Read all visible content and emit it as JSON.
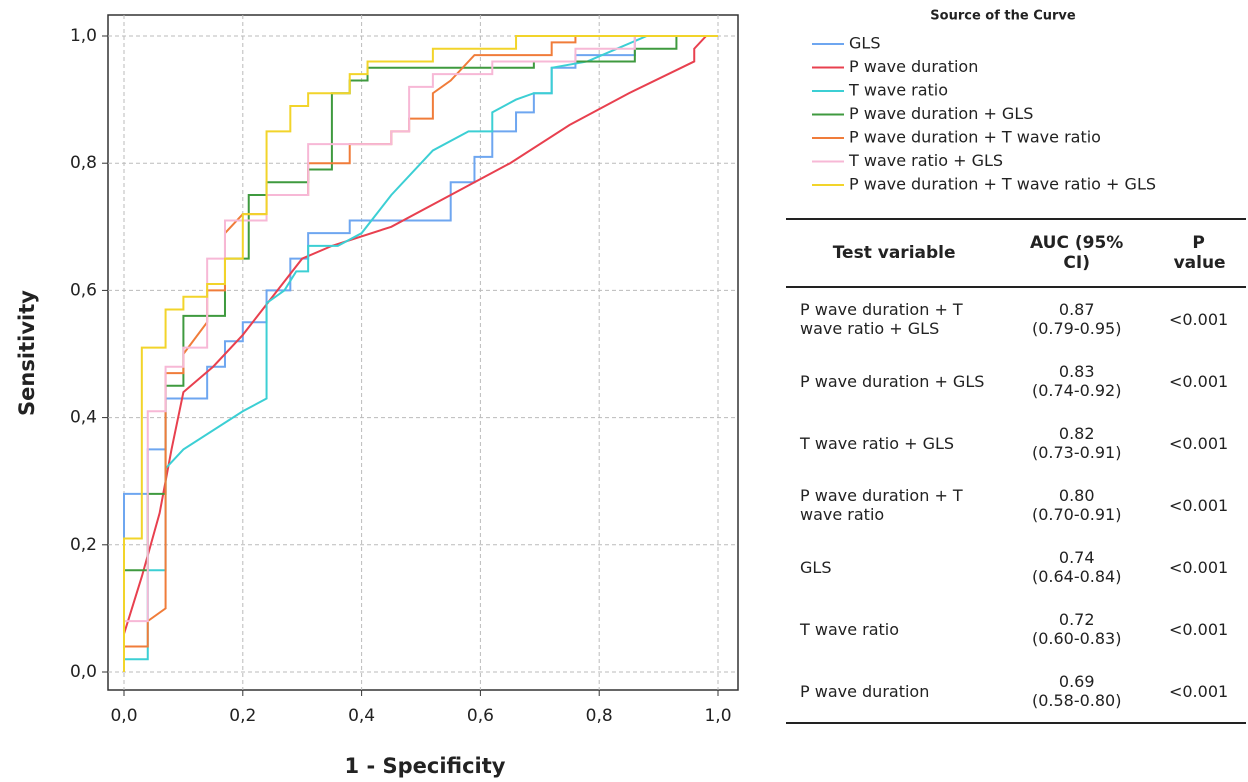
{
  "chart_data": {
    "type": "line",
    "xlabel": "1 - Specificity",
    "ylabel": "Sensitivity",
    "legend_title": "Source of the Curve",
    "legend": "right",
    "grid": true,
    "xlim": [
      0,
      1
    ],
    "ylim": [
      0,
      1
    ],
    "xticks": [
      {
        "value": 0,
        "label": "0,0"
      },
      {
        "value": 0.2,
        "label": "0,2"
      },
      {
        "value": 0.4,
        "label": "0,4"
      },
      {
        "value": 0.6,
        "label": "0,6"
      },
      {
        "value": 0.8,
        "label": "0,8"
      },
      {
        "value": 1,
        "label": "1,0"
      }
    ],
    "yticks": [
      {
        "value": 0,
        "label": "0,0"
      },
      {
        "value": 0.2,
        "label": "0,2"
      },
      {
        "value": 0.4,
        "label": "0,4"
      },
      {
        "value": 0.6,
        "label": "0,6"
      },
      {
        "value": 0.8,
        "label": "0,8"
      },
      {
        "value": 1,
        "label": "1,0"
      }
    ],
    "series": [
      {
        "name": "GLS",
        "color": "#6ea6f0",
        "x": [
          0,
          0,
          0.04,
          0.04,
          0.07,
          0.07,
          0.14,
          0.14,
          0.17,
          0.17,
          0.2,
          0.2,
          0.24,
          0.24,
          0.28,
          0.28,
          0.31,
          0.31,
          0.38,
          0.38,
          0.55,
          0.55,
          0.59,
          0.59,
          0.62,
          0.62,
          0.66,
          0.66,
          0.69,
          0.69,
          0.72,
          0.72,
          0.76,
          0.76,
          0.86,
          0.86,
          1
        ],
        "values": [
          0,
          0.28,
          0.28,
          0.35,
          0.35,
          0.43,
          0.43,
          0.48,
          0.48,
          0.52,
          0.52,
          0.55,
          0.55,
          0.6,
          0.6,
          0.65,
          0.65,
          0.69,
          0.69,
          0.71,
          0.71,
          0.77,
          0.77,
          0.81,
          0.81,
          0.85,
          0.85,
          0.88,
          0.88,
          0.91,
          0.91,
          0.95,
          0.95,
          0.97,
          0.97,
          1,
          1
        ]
      },
      {
        "name": "P wave duration",
        "color": "#e8404f",
        "x": [
          0,
          0.03,
          0.06,
          0.08,
          0.1,
          0.15,
          0.2,
          0.25,
          0.3,
          0.35,
          0.45,
          0.55,
          0.65,
          0.75,
          0.85,
          0.96,
          0.96,
          0.98,
          1
        ],
        "values": [
          0.06,
          0.15,
          0.25,
          0.35,
          0.44,
          0.48,
          0.53,
          0.59,
          0.65,
          0.67,
          0.7,
          0.75,
          0.8,
          0.86,
          0.91,
          0.96,
          0.98,
          1,
          1
        ]
      },
      {
        "name": "T wave ratio",
        "color": "#3ccfd4",
        "x": [
          0,
          0.04,
          0.04,
          0.07,
          0.07,
          0.1,
          0.2,
          0.24,
          0.24,
          0.27,
          0.29,
          0.31,
          0.31,
          0.36,
          0.4,
          0.45,
          0.52,
          0.58,
          0.62,
          0.62,
          0.66,
          0.69,
          0.72,
          0.72,
          0.78,
          0.83,
          0.88,
          1
        ],
        "values": [
          0.02,
          0.02,
          0.16,
          0.16,
          0.32,
          0.35,
          0.41,
          0.43,
          0.58,
          0.6,
          0.63,
          0.63,
          0.67,
          0.67,
          0.69,
          0.75,
          0.82,
          0.85,
          0.85,
          0.88,
          0.9,
          0.91,
          0.91,
          0.95,
          0.96,
          0.98,
          1,
          1
        ]
      },
      {
        "name": "P wave duration + GLS",
        "color": "#3f9a3f",
        "x": [
          0,
          0,
          0.04,
          0.04,
          0.07,
          0.07,
          0.1,
          0.1,
          0.17,
          0.17,
          0.21,
          0.21,
          0.24,
          0.24,
          0.31,
          0.31,
          0.35,
          0.35,
          0.38,
          0.38,
          0.41,
          0.41,
          0.69,
          0.69,
          0.86,
          0.86,
          0.9,
          0.93,
          0.93,
          1
        ],
        "values": [
          0,
          0.16,
          0.16,
          0.28,
          0.28,
          0.45,
          0.45,
          0.56,
          0.56,
          0.65,
          0.65,
          0.75,
          0.75,
          0.77,
          0.77,
          0.79,
          0.79,
          0.91,
          0.91,
          0.93,
          0.93,
          0.95,
          0.95,
          0.96,
          0.96,
          0.98,
          0.98,
          0.98,
          1,
          1
        ]
      },
      {
        "name": "P wave duration + T wave ratio",
        "color": "#f07c3a",
        "x": [
          0,
          0,
          0.04,
          0.04,
          0.07,
          0.07,
          0.1,
          0.1,
          0.14,
          0.14,
          0.17,
          0.17,
          0.2,
          0.24,
          0.24,
          0.31,
          0.31,
          0.38,
          0.38,
          0.45,
          0.45,
          0.48,
          0.48,
          0.52,
          0.52,
          0.55,
          0.59,
          0.72,
          0.72,
          0.76,
          0.76,
          1
        ],
        "values": [
          0,
          0.04,
          0.04,
          0.08,
          0.1,
          0.47,
          0.47,
          0.5,
          0.55,
          0.6,
          0.6,
          0.69,
          0.72,
          0.72,
          0.75,
          0.75,
          0.8,
          0.8,
          0.83,
          0.83,
          0.85,
          0.85,
          0.87,
          0.87,
          0.91,
          0.93,
          0.97,
          0.97,
          0.99,
          0.99,
          1,
          1
        ]
      },
      {
        "name": "T wave ratio + GLS",
        "color": "#f7b8d6",
        "x": [
          0,
          0,
          0.04,
          0.04,
          0.07,
          0.07,
          0.1,
          0.1,
          0.14,
          0.14,
          0.17,
          0.17,
          0.24,
          0.24,
          0.31,
          0.31,
          0.45,
          0.45,
          0.48,
          0.48,
          0.52,
          0.52,
          0.62,
          0.62,
          0.76,
          0.76,
          0.86,
          0.86,
          1
        ],
        "values": [
          0,
          0.08,
          0.08,
          0.41,
          0.41,
          0.48,
          0.48,
          0.51,
          0.51,
          0.65,
          0.65,
          0.71,
          0.71,
          0.75,
          0.75,
          0.83,
          0.83,
          0.85,
          0.85,
          0.92,
          0.92,
          0.94,
          0.94,
          0.96,
          0.96,
          0.98,
          0.98,
          1,
          1
        ]
      },
      {
        "name": "P wave duration + T wave ratio + GLS",
        "color": "#f2d42a",
        "x": [
          0,
          0,
          0.03,
          0.03,
          0.07,
          0.07,
          0.1,
          0.1,
          0.14,
          0.14,
          0.17,
          0.17,
          0.2,
          0.2,
          0.24,
          0.24,
          0.28,
          0.28,
          0.31,
          0.31,
          0.38,
          0.38,
          0.41,
          0.41,
          0.52,
          0.52,
          0.66,
          0.66,
          1
        ],
        "values": [
          0,
          0.21,
          0.21,
          0.51,
          0.51,
          0.57,
          0.57,
          0.59,
          0.59,
          0.61,
          0.61,
          0.65,
          0.65,
          0.72,
          0.72,
          0.85,
          0.85,
          0.89,
          0.89,
          0.91,
          0.91,
          0.94,
          0.94,
          0.96,
          0.96,
          0.98,
          0.98,
          1,
          1
        ]
      }
    ]
  },
  "table": {
    "header": [
      "Test variable",
      "AUC (95% CI)",
      "P value"
    ],
    "rows": [
      [
        "P wave duration + T wave ratio + GLS",
        "0.87",
        "(0.79-0.95)",
        "<0.001"
      ],
      [
        "P wave duration + GLS",
        "0.83",
        "(0.74-0.92)",
        "<0.001"
      ],
      [
        "T wave ratio + GLS",
        "0.82",
        "(0.73-0.91)",
        "<0.001"
      ],
      [
        "P wave duration + T wave ratio",
        "0.80",
        "(0.70-0.91)",
        "<0.001"
      ],
      [
        "GLS",
        "0.74",
        "(0.64-0.84)",
        "<0.001"
      ],
      [
        "T wave ratio",
        "0.72",
        "(0.60-0.83)",
        "<0.001"
      ],
      [
        "P wave duration",
        "0.69",
        "(0.58-0.80)",
        "<0.001"
      ]
    ]
  }
}
